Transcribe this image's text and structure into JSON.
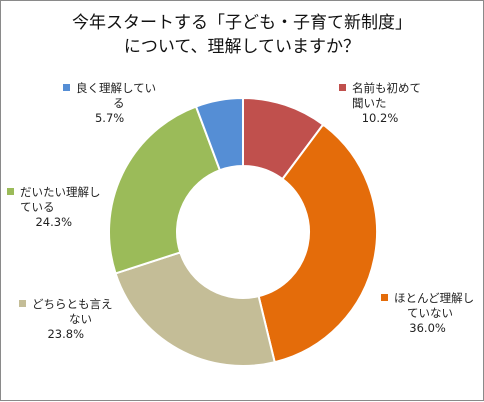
{
  "chart_data": {
    "type": "pie",
    "donut": true,
    "title_lines": [
      "今年スタートする「子ども・子育て新制度」",
      "について、理解していますか？"
    ],
    "slices": [
      {
        "label_lines": [
          "名前も初めて",
          "聞いた"
        ],
        "value": 10.2,
        "value_label": "10.2%",
        "color": "#c0504d"
      },
      {
        "label_lines": [
          "ほとんど理解し",
          "ていない"
        ],
        "value": 36.0,
        "value_label": "36.0%",
        "color": "#e46c0a"
      },
      {
        "label_lines": [
          "どちらとも言え",
          "ない"
        ],
        "value": 23.8,
        "value_label": "23.8%",
        "color": "#c4bd97"
      },
      {
        "label_lines": [
          "だいたい理解し",
          "ている"
        ],
        "value": 24.3,
        "value_label": "24.3%",
        "color": "#9bbb59"
      },
      {
        "label_lines": [
          "良く理解してい",
          "る"
        ],
        "value": 5.7,
        "value_label": "5.7%",
        "color": "#558ed5"
      }
    ],
    "legend": "labels-around-chart"
  }
}
